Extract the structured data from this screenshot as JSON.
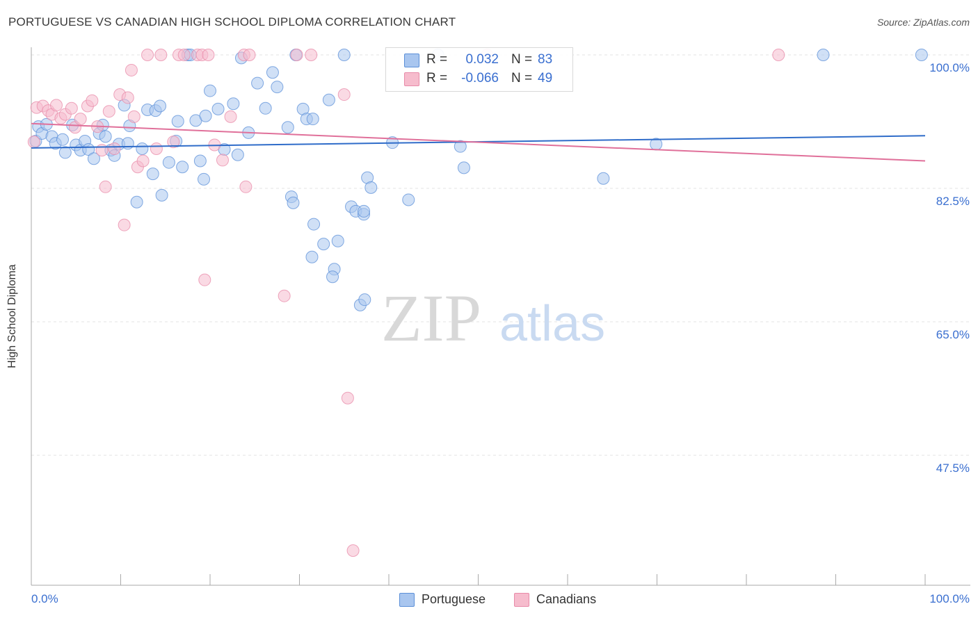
{
  "title": "PORTUGUESE VS CANADIAN HIGH SCHOOL DIPLOMA CORRELATION CHART",
  "source": "Source: ZipAtlas.com",
  "watermark": {
    "zip": "ZIP",
    "atlas": "atlas"
  },
  "legend": {
    "rows": [
      {
        "r_label": "R =",
        "r_value": "0.032",
        "n_label": "N =",
        "n_value": "83"
      },
      {
        "r_label": "R =",
        "r_value": "-0.066",
        "n_label": "N =",
        "n_value": "49"
      }
    ]
  },
  "bottom_legend": {
    "portuguese": "Portuguese",
    "canadians": "Canadians"
  },
  "colors": {
    "portuguese_fill": "#a9c6ef",
    "portuguese_stroke": "#5b8fd8",
    "portuguese_line": "#2f6cc9",
    "canadians_fill": "#f6bccd",
    "canadians_stroke": "#e88aa8",
    "canadians_line": "#e0709a",
    "tick_label": "#3a6fd0",
    "grid": "#e3e3e3"
  },
  "chart_data": {
    "type": "scatter",
    "title": "PORTUGUESE VS CANADIAN HIGH SCHOOL DIPLOMA CORRELATION CHART",
    "xlabel": "",
    "ylabel": "High School Diploma",
    "xlim": [
      0,
      100
    ],
    "ylim": [
      30,
      102.5
    ],
    "x_tick_labels": [
      "0.0%",
      "100.0%"
    ],
    "y_ticks": [
      47.5,
      65.0,
      82.5,
      100.0
    ],
    "y_tick_labels": [
      "47.5%",
      "65.0%",
      "82.5%",
      "100.0%"
    ],
    "grid": true,
    "legend_position": "top-center",
    "series": [
      {
        "name": "Portuguese",
        "R": 0.032,
        "N": 83,
        "trend": [
          [
            0,
            87.8
          ],
          [
            100,
            89.4
          ]
        ],
        "points": [
          [
            0.5,
            88.7
          ],
          [
            0.8,
            90.6
          ],
          [
            1.2,
            89.7
          ],
          [
            1.7,
            90.9
          ],
          [
            2.3,
            89.3
          ],
          [
            2.7,
            88.4
          ],
          [
            3.5,
            88.9
          ],
          [
            3.8,
            87.2
          ],
          [
            4.6,
            90.8
          ],
          [
            5.0,
            88.2
          ],
          [
            5.5,
            87.5
          ],
          [
            6.0,
            88.7
          ],
          [
            6.4,
            87.6
          ],
          [
            7.0,
            86.4
          ],
          [
            7.6,
            89.7
          ],
          [
            8.0,
            90.8
          ],
          [
            8.3,
            89.3
          ],
          [
            8.9,
            87.5
          ],
          [
            9.3,
            86.8
          ],
          [
            9.8,
            88.3
          ],
          [
            10.4,
            93.4
          ],
          [
            10.8,
            88.4
          ],
          [
            11.0,
            90.7
          ],
          [
            11.8,
            80.7
          ],
          [
            12.4,
            87.7
          ],
          [
            13.0,
            92.8
          ],
          [
            13.6,
            84.4
          ],
          [
            13.9,
            92.7
          ],
          [
            14.4,
            93.3
          ],
          [
            14.6,
            81.6
          ],
          [
            15.4,
            85.9
          ],
          [
            16.2,
            88.7
          ],
          [
            16.4,
            91.3
          ],
          [
            16.9,
            85.3
          ],
          [
            17.5,
            100.0
          ],
          [
            17.8,
            100.0
          ],
          [
            18.4,
            91.4
          ],
          [
            18.9,
            86.1
          ],
          [
            19.3,
            83.7
          ],
          [
            19.5,
            92.0
          ],
          [
            20.0,
            95.3
          ],
          [
            20.9,
            92.9
          ],
          [
            21.6,
            87.6
          ],
          [
            22.6,
            93.6
          ],
          [
            23.1,
            86.9
          ],
          [
            23.5,
            99.6
          ],
          [
            24.3,
            89.8
          ],
          [
            25.3,
            96.3
          ],
          [
            26.2,
            93.0
          ],
          [
            27.0,
            97.7
          ],
          [
            27.5,
            95.8
          ],
          [
            28.7,
            90.5
          ],
          [
            29.1,
            81.4
          ],
          [
            29.3,
            80.6
          ],
          [
            29.6,
            100.0
          ],
          [
            30.4,
            92.9
          ],
          [
            30.8,
            91.6
          ],
          [
            31.5,
            91.6
          ],
          [
            31.6,
            77.8
          ],
          [
            31.4,
            73.5
          ],
          [
            32.7,
            75.2
          ],
          [
            33.3,
            94.1
          ],
          [
            34.3,
            75.6
          ],
          [
            33.9,
            71.9
          ],
          [
            33.7,
            70.9
          ],
          [
            35.0,
            100.0
          ],
          [
            35.8,
            80.1
          ],
          [
            36.3,
            79.5
          ],
          [
            37.2,
            79.1
          ],
          [
            37.6,
            83.9
          ],
          [
            38.0,
            82.6
          ],
          [
            37.2,
            79.5
          ],
          [
            36.8,
            67.2
          ],
          [
            37.3,
            67.9
          ],
          [
            40.4,
            88.5
          ],
          [
            42.2,
            81.0
          ],
          [
            45.5,
            100.0
          ],
          [
            48.0,
            88.0
          ],
          [
            48.4,
            85.2
          ],
          [
            64.0,
            83.8
          ],
          [
            69.9,
            88.3
          ],
          [
            88.6,
            100.0
          ],
          [
            99.6,
            100.0
          ]
        ]
      },
      {
        "name": "Canadians",
        "R": -0.066,
        "N": 49,
        "trend": [
          [
            0,
            91.0
          ],
          [
            100,
            86.1
          ]
        ],
        "points": [
          [
            0.3,
            88.6
          ],
          [
            0.6,
            93.1
          ],
          [
            1.3,
            93.3
          ],
          [
            1.9,
            92.7
          ],
          [
            2.3,
            92.2
          ],
          [
            2.8,
            93.4
          ],
          [
            3.3,
            91.7
          ],
          [
            3.8,
            92.2
          ],
          [
            4.5,
            93.0
          ],
          [
            4.9,
            90.5
          ],
          [
            5.5,
            91.6
          ],
          [
            6.3,
            93.3
          ],
          [
            6.8,
            94.0
          ],
          [
            7.4,
            90.6
          ],
          [
            7.9,
            87.5
          ],
          [
            8.3,
            82.7
          ],
          [
            8.7,
            92.6
          ],
          [
            9.3,
            87.7
          ],
          [
            9.9,
            94.8
          ],
          [
            10.4,
            77.7
          ],
          [
            10.8,
            94.4
          ],
          [
            11.2,
            98.0
          ],
          [
            11.5,
            91.9
          ],
          [
            11.9,
            85.3
          ],
          [
            12.5,
            86.1
          ],
          [
            13.0,
            100.0
          ],
          [
            14.0,
            87.7
          ],
          [
            14.5,
            100.0
          ],
          [
            15.9,
            88.6
          ],
          [
            16.5,
            100.0
          ],
          [
            17.1,
            100.0
          ],
          [
            18.6,
            100.0
          ],
          [
            19.1,
            100.0
          ],
          [
            19.4,
            70.5
          ],
          [
            19.8,
            100.0
          ],
          [
            20.5,
            88.2
          ],
          [
            21.4,
            86.2
          ],
          [
            22.3,
            91.9
          ],
          [
            23.8,
            100.0
          ],
          [
            24.0,
            82.7
          ],
          [
            24.4,
            100.0
          ],
          [
            28.3,
            68.4
          ],
          [
            29.7,
            100.0
          ],
          [
            31.3,
            100.0
          ],
          [
            35.0,
            94.8
          ],
          [
            35.4,
            55.0
          ],
          [
            36.0,
            35.0
          ],
          [
            51.0,
            100.0
          ],
          [
            83.6,
            100.0
          ]
        ]
      }
    ]
  }
}
